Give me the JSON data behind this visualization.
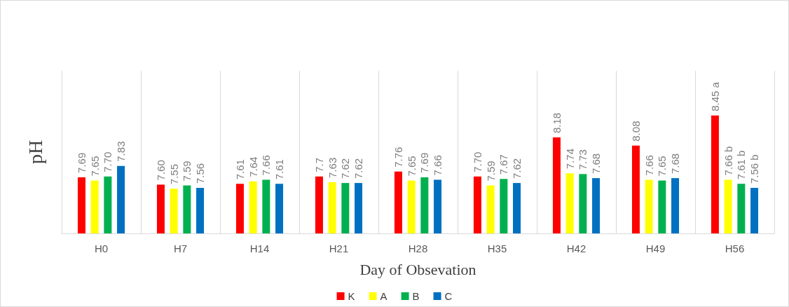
{
  "chart_data": {
    "type": "bar",
    "xlabel": "Day of Obsevation",
    "ylabel": "pH",
    "categories": [
      "H0",
      "H7",
      "H14",
      "H21",
      "H28",
      "H35",
      "H42",
      "H49",
      "H56"
    ],
    "ylim": [
      7,
      9
    ],
    "grid": "x",
    "legend": "bottom",
    "series": [
      {
        "name": "K",
        "color": "#ff0000",
        "values": [
          7.69,
          7.6,
          7.61,
          7.7,
          7.76,
          7.7,
          8.18,
          8.08,
          8.45
        ],
        "value_labels": [
          "7.69",
          "7.60",
          "7.61",
          "7.7",
          "7.76",
          "7.70",
          "8.18",
          "8.08",
          "8.45 a"
        ]
      },
      {
        "name": "A",
        "color": "#ffff00",
        "values": [
          7.65,
          7.55,
          7.64,
          7.63,
          7.65,
          7.59,
          7.74,
          7.66,
          7.66
        ],
        "value_labels": [
          "7.65",
          "7.55",
          "7.64",
          "7.63",
          "7.65",
          "7.59",
          "7.74",
          "7.66",
          "7.66 b"
        ]
      },
      {
        "name": "B",
        "color": "#00b050",
        "values": [
          7.7,
          7.59,
          7.66,
          7.62,
          7.69,
          7.67,
          7.73,
          7.65,
          7.61
        ],
        "value_labels": [
          "7.70",
          "7.59",
          "7.66",
          "7.62",
          "7.69",
          "7.67",
          "7.73",
          "7.65",
          "7.61 b"
        ]
      },
      {
        "name": "C",
        "color": "#0070c0",
        "values": [
          7.83,
          7.56,
          7.61,
          7.62,
          7.66,
          7.62,
          7.68,
          7.68,
          7.56
        ],
        "value_labels": [
          "7.83",
          "7.56",
          "7.61",
          "7.62",
          "7.66",
          "7.62",
          "7.68",
          "7.68",
          "7.56 b"
        ]
      }
    ]
  }
}
